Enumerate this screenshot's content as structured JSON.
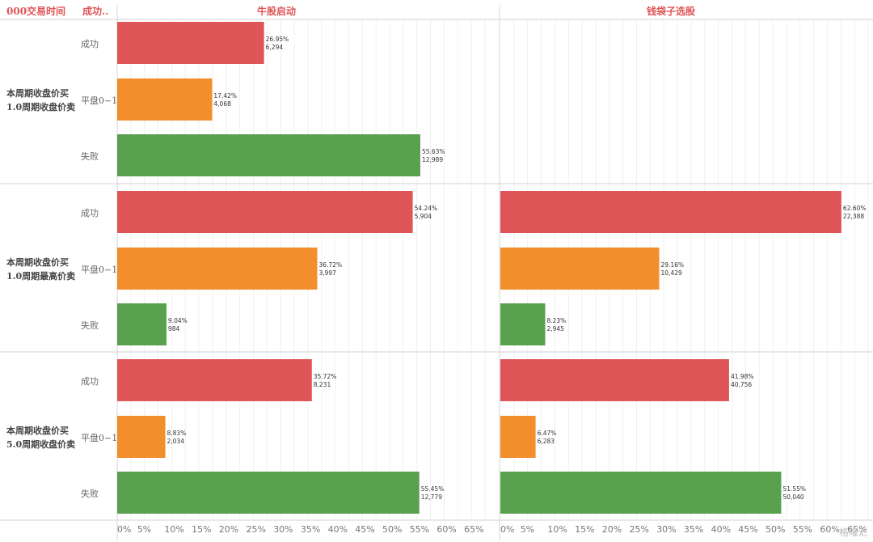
{
  "header": {
    "period_col": "000交易时间",
    "category_col": "成功..",
    "panel_titles": [
      "牛股启动",
      "钱袋子选股"
    ]
  },
  "watermark": "格隆汇",
  "colors": {
    "成功": "#e05558",
    "平盘0~1": "#f28e2b",
    "失败": "#59a14f",
    "header": "#e05555"
  },
  "chart_data": {
    "type": "bar",
    "orientation": "horizontal",
    "x_ticks": [
      "0%",
      "5%",
      "10%",
      "15%",
      "20%",
      "25%",
      "30%",
      "35%",
      "40%",
      "45%",
      "50%",
      "55%",
      "60%",
      "65%"
    ],
    "xlim": [
      0,
      68
    ],
    "categories": [
      "成功",
      "平盘0~1",
      "失败"
    ],
    "panels": [
      "牛股启动",
      "钱袋子选股"
    ],
    "row_groups": [
      {
        "label": "本周期收盘价买1.0周期收盘价卖",
        "cells": [
          {
            "panel": "牛股启动",
            "bars": [
              {
                "category": "成功",
                "category_label": "成功",
                "pct": 26.95,
                "pct_label": "26.95%",
                "count_label": "6,294"
              },
              {
                "category": "平盘0~1",
                "category_label": "平盘0~1",
                "pct": 17.42,
                "pct_label": "17.42%",
                "count_label": "4,068"
              },
              {
                "category": "失败",
                "category_label": "失败",
                "pct": 55.63,
                "pct_label": "55.63%",
                "count_label": "12,989"
              }
            ]
          },
          {
            "panel": "钱袋子选股",
            "bars": []
          }
        ]
      },
      {
        "label": "本周期收盘价买1.0周期最高价卖",
        "cells": [
          {
            "panel": "牛股启动",
            "bars": [
              {
                "category": "成功",
                "category_label": "成功",
                "pct": 54.24,
                "pct_label": "54.24%",
                "count_label": "5,904"
              },
              {
                "category": "平盘0~1",
                "category_label": "平盘0~1",
                "pct": 36.72,
                "pct_label": "36.72%",
                "count_label": "3,997"
              },
              {
                "category": "失败",
                "category_label": "失败",
                "pct": 9.04,
                "pct_label": "9.04%",
                "count_label": "984"
              }
            ]
          },
          {
            "panel": "钱袋子选股",
            "bars": [
              {
                "category": "成功",
                "category_label": "成功",
                "pct": 62.6,
                "pct_label": "62.60%",
                "count_label": "22,388"
              },
              {
                "category": "平盘0~1",
                "category_label": "平盘0~1",
                "pct": 29.16,
                "pct_label": "29.16%",
                "count_label": "10,429"
              },
              {
                "category": "失败",
                "category_label": "失败",
                "pct": 8.23,
                "pct_label": "8.23%",
                "count_label": "2,945"
              }
            ]
          }
        ]
      },
      {
        "label": "本周期收盘价买5.0周期收盘价卖",
        "cells": [
          {
            "panel": "牛股启动",
            "bars": [
              {
                "category": "成功",
                "category_label": "成功",
                "pct": 35.72,
                "pct_label": "35.72%",
                "count_label": "8,231"
              },
              {
                "category": "平盘0~1",
                "category_label": "平盘0~1",
                "pct": 8.83,
                "pct_label": "8.83%",
                "count_label": "2,034"
              },
              {
                "category": "失败",
                "category_label": "失败",
                "pct": 55.45,
                "pct_label": "55.45%",
                "count_label": "12,779"
              }
            ]
          },
          {
            "panel": "钱袋子选股",
            "bars": [
              {
                "category": "成功",
                "category_label": "成功",
                "pct": 41.98,
                "pct_label": "41.98%",
                "count_label": "40,756"
              },
              {
                "category": "平盘0~1",
                "category_label": "平盘0~1",
                "pct": 6.47,
                "pct_label": "6.47%",
                "count_label": "6,283"
              },
              {
                "category": "失败",
                "category_label": "失败",
                "pct": 51.55,
                "pct_label": "51.55%",
                "count_label": "50,040"
              }
            ]
          }
        ]
      }
    ]
  }
}
